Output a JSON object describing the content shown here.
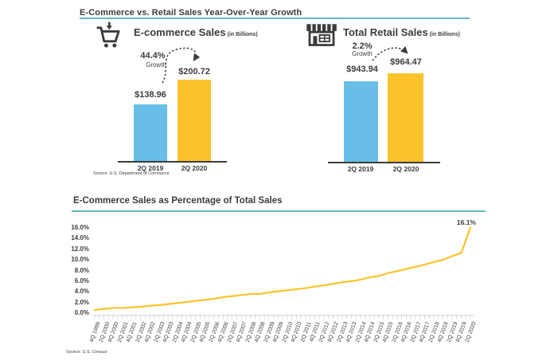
{
  "page_title": "E-Commerce vs. Retail Sales Year-Over-Year Growth",
  "colors": {
    "bar_blue": "#68BEE6",
    "bar_yellow": "#FBC32B",
    "line_yellow": "#FBC32B",
    "accent_teal": "#69B7BD",
    "text_dark": "#3C3C3B",
    "tick_gray": "#C8C8C8"
  },
  "chart_data": [
    {
      "type": "bar",
      "title": "E-commerce Sales",
      "unit_note": "(in Billions)",
      "icon": "shopping-cart-icon",
      "growth_pct": "44.4%",
      "growth_word": "Growth",
      "categories": [
        "2Q 2019",
        "2Q 2020"
      ],
      "values": [
        138.96,
        200.72
      ],
      "value_labels": [
        "$138.96",
        "$200.72"
      ],
      "bar_colors": [
        "#68BEE6",
        "#FBC32B"
      ],
      "source": "Source: U.S. Department of Commerce"
    },
    {
      "type": "bar",
      "title": "Total Retail Sales",
      "unit_note": "(in Billions)",
      "icon": "storefront-icon",
      "growth_pct": "2.2%",
      "growth_word": "Growth",
      "categories": [
        "2Q 2019",
        "2Q 2020"
      ],
      "values": [
        943.94,
        964.47
      ],
      "value_labels": [
        "$943.94",
        "$964.47"
      ],
      "bar_colors": [
        "#68BEE6",
        "#FBC32B"
      ]
    },
    {
      "type": "line",
      "title": "E-Commerce Sales as Percentage of Total Sales",
      "ylim": [
        0,
        16
      ],
      "grid": false,
      "y_tick_labels": [
        "16.0%",
        "14.0%",
        "12.0%",
        "10.0%",
        "8.0%",
        "6.0%",
        "4.0%",
        "2.0%",
        "0.0%"
      ],
      "x": [
        "4Q 1999",
        "2Q 2000",
        "4Q 2000",
        "2Q 2001",
        "4Q 2001",
        "2Q 2002",
        "4Q 2002",
        "2Q 2003",
        "4Q 2003",
        "2Q 2004",
        "4Q 2004",
        "2Q 2005",
        "4Q 2005",
        "2Q 2006",
        "4Q 2006",
        "2Q 2007",
        "4Q 2007",
        "2Q 2008",
        "4Q 2008",
        "2Q 2009",
        "4Q 2009",
        "2Q 2010",
        "4Q 2010",
        "2Q 2011",
        "4Q 2011",
        "2Q 2012",
        "4Q 2012",
        "2Q 2013",
        "4Q 2013",
        "2Q 2014",
        "4Q 2014",
        "2Q 2015",
        "4Q 2015",
        "2Q 2016",
        "4Q 2016",
        "2Q 2017",
        "4Q 2017",
        "2Q 2018",
        "4Q 2018",
        "2Q 2019",
        "4Q 2019",
        "2Q 2020"
      ],
      "values": [
        0.6,
        0.8,
        1.0,
        1.0,
        1.1,
        1.2,
        1.4,
        1.5,
        1.7,
        1.9,
        2.1,
        2.3,
        2.5,
        2.7,
        3.0,
        3.2,
        3.4,
        3.6,
        3.6,
        3.9,
        4.1,
        4.3,
        4.5,
        4.7,
        5.0,
        5.2,
        5.5,
        5.8,
        6.0,
        6.3,
        6.7,
        7.0,
        7.5,
        7.9,
        8.3,
        8.7,
        9.1,
        9.6,
        10.0,
        10.7,
        11.3,
        16.1
      ],
      "end_annotation": "16.1%",
      "source": "Source: U.S. Census"
    }
  ]
}
